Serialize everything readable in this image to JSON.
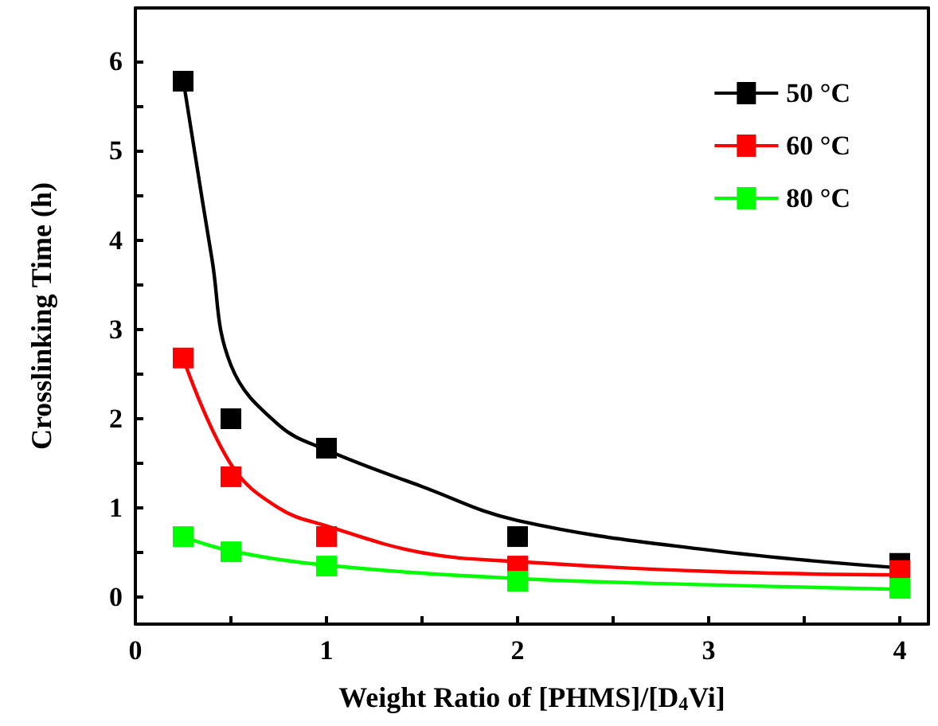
{
  "chart_data": {
    "type": "scatter",
    "xlabel": "Weight Ratio of [PHMS]/[D$_{4}$Vi]",
    "ylabel": "Crosslinking Time (h)",
    "xlim": [
      0,
      4.15
    ],
    "ylim": [
      -0.3,
      6.6
    ],
    "xticks": [
      0,
      {
        "value": 0.5,
        "label": null
      },
      1,
      {
        "value": 1.5,
        "label": null
      },
      2,
      {
        "value": 2.5,
        "label": null
      },
      3,
      {
        "value": 3.5,
        "label": null
      },
      4
    ],
    "yticks": [
      0,
      {
        "value": 0.5,
        "label": null
      },
      1,
      {
        "value": 1.5,
        "label": null
      },
      2,
      {
        "value": 2.5,
        "label": null
      },
      3,
      {
        "value": 3.5,
        "label": null
      },
      4,
      {
        "value": 4.5,
        "label": null
      },
      5,
      {
        "value": 5.5,
        "label": null
      },
      6
    ],
    "x": [
      0.25,
      0.5,
      1,
      2,
      4
    ],
    "marker": "square",
    "legend": "top right",
    "grid": false,
    "series": [
      {
        "name": "50 °C",
        "color": "#000000",
        "values": [
          5.78,
          2.0,
          1.67,
          0.68,
          0.38
        ]
      },
      {
        "name": "60 °C",
        "color": "#ff0000",
        "values": [
          2.68,
          1.35,
          0.68,
          0.35,
          0.3
        ]
      },
      {
        "name": "80 °C",
        "color": "#00ff00",
        "values": [
          0.68,
          0.51,
          0.35,
          0.18,
          0.1
        ]
      },
      {
        "type": "line",
        "color": "#000000",
        "marker": "none",
        "x": [
          0.25,
          0.4,
          0.5,
          0.75,
          1,
          1.5,
          2,
          3,
          4
        ],
        "values": [
          5.8,
          3.8,
          2.6,
          1.93,
          1.65,
          1.24,
          0.86,
          0.53,
          0.33
        ]
      },
      {
        "type": "line",
        "color": "#ff0000",
        "marker": "none",
        "x": [
          0.25,
          0.5,
          0.75,
          1,
          1.5,
          2,
          3,
          4
        ],
        "values": [
          2.68,
          1.49,
          1.0,
          0.8,
          0.5,
          0.4,
          0.29,
          0.25
        ]
      },
      {
        "type": "line",
        "color": "#00ff00",
        "marker": "none",
        "x": [
          0.25,
          0.5,
          1,
          2,
          3,
          4
        ],
        "values": [
          0.68,
          0.52,
          0.36,
          0.21,
          0.14,
          0.09
        ]
      }
    ]
  }
}
